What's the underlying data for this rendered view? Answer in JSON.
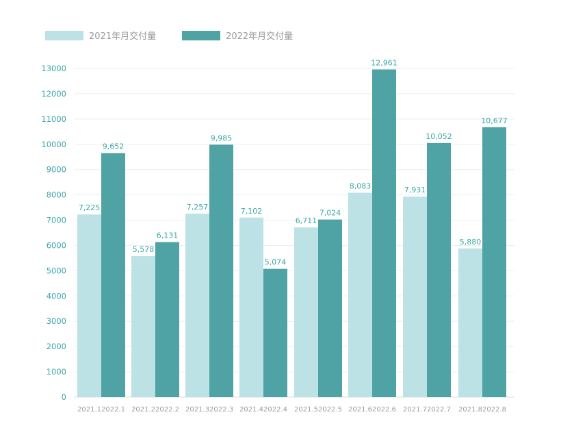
{
  "legend": [
    {
      "label": "2021年月交付量",
      "color": "#bde2e6"
    },
    {
      "label": "2022年月交付量",
      "color": "#4fa3a5"
    }
  ],
  "chart_data": {
    "type": "bar",
    "ylim": [
      0,
      13000
    ],
    "y_ticks": [
      0,
      1000,
      2000,
      3000,
      4000,
      5000,
      6000,
      7000,
      8000,
      9000,
      10000,
      11000,
      12000,
      13000
    ],
    "grid": true,
    "legend_position": "top-left",
    "groups": [
      {
        "bars": [
          {
            "x_label": "2021.1",
            "value": 7225,
            "label": "7,225"
          },
          {
            "x_label": "2022.1",
            "value": 9652,
            "label": "9,652"
          }
        ]
      },
      {
        "bars": [
          {
            "x_label": "2021.2",
            "value": 5578,
            "label": "5,578"
          },
          {
            "x_label": "2022.2",
            "value": 6131,
            "label": "6,131"
          }
        ]
      },
      {
        "bars": [
          {
            "x_label": "2021.3",
            "value": 7257,
            "label": "7,257"
          },
          {
            "x_label": "2022.3",
            "value": 9985,
            "label": "9,985"
          }
        ]
      },
      {
        "bars": [
          {
            "x_label": "2021.4",
            "value": 7102,
            "label": "7,102"
          },
          {
            "x_label": "2022.4",
            "value": 5074,
            "label": "5,074"
          }
        ]
      },
      {
        "bars": [
          {
            "x_label": "2021.5",
            "value": 6711,
            "label": "6,711"
          },
          {
            "x_label": "2022.5",
            "value": 7024,
            "label": "7,024"
          }
        ]
      },
      {
        "bars": [
          {
            "x_label": "2021.6",
            "value": 8083,
            "label": "8,083"
          },
          {
            "x_label": "2022.6",
            "value": 12961,
            "label": "12,961"
          }
        ]
      },
      {
        "bars": [
          {
            "x_label": "2021.7",
            "value": 7931,
            "label": "7,931"
          },
          {
            "x_label": "2022.7",
            "value": 10052,
            "label": "10,052"
          }
        ]
      },
      {
        "bars": [
          {
            "x_label": "2021.8",
            "value": 5880,
            "label": "5,880"
          },
          {
            "x_label": "2022.8",
            "value": 10677,
            "label": "10,677"
          }
        ]
      }
    ],
    "series": [
      {
        "name": "2021年月交付量",
        "color": "#bde2e6"
      },
      {
        "name": "2022年月交付量",
        "color": "#4fa3a5"
      }
    ],
    "tick_color": "#3aa6a8",
    "value_label_color": "#3aa6a8",
    "x_label_color": "#9a9a9a"
  }
}
